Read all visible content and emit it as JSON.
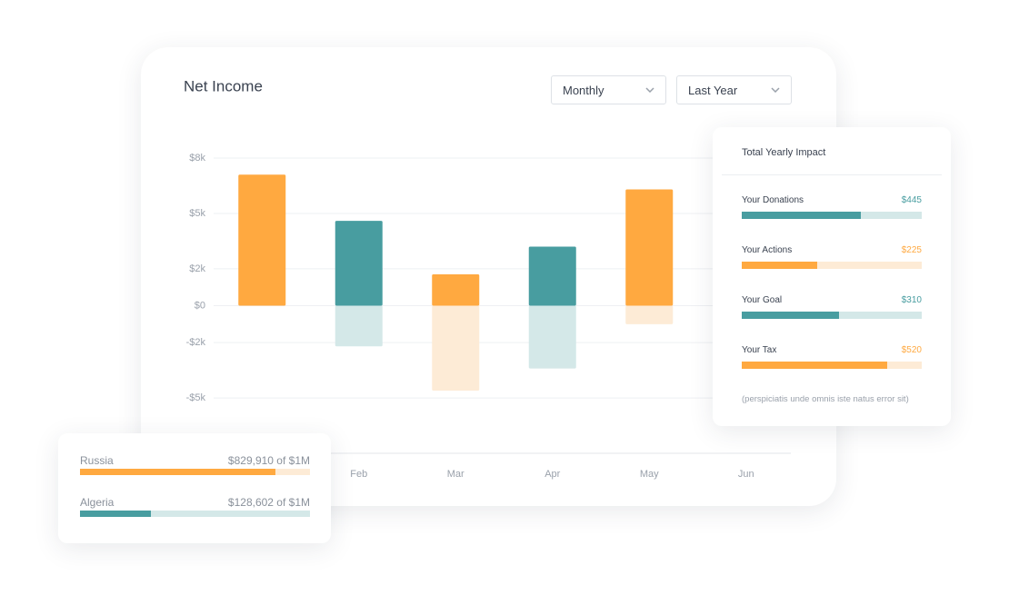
{
  "chart_data": {
    "type": "bar",
    "title": "Net Income",
    "categories": [
      null,
      "Feb",
      "Mar",
      "Apr",
      "May",
      "Jun"
    ],
    "series": [
      {
        "colors": [
          "#ffa940",
          "#489da0",
          "#ffa940",
          "#489da0",
          "#ffa940",
          "#489da0"
        ],
        "values": [
          7.1,
          4.6,
          1.7,
          3.2,
          6.3,
          null
        ]
      },
      {
        "colors": [
          "#fdebd6",
          "#d4e8e8",
          "#fdebd6",
          "#d4e8e8",
          "#fdebd6",
          "#d4e8e8"
        ],
        "values": [
          null,
          -2.2,
          -4.6,
          -3.4,
          -1.0,
          null
        ]
      }
    ],
    "ylim": [
      -8,
      8
    ],
    "yticks": [
      {
        "value": 8,
        "label": "$8k"
      },
      {
        "value": 5,
        "label": "$5k"
      },
      {
        "value": 2,
        "label": "$2k"
      },
      {
        "value": 0,
        "label": "$0"
      },
      {
        "value": -2,
        "label": "-$2k"
      },
      {
        "value": -5,
        "label": "-$5k"
      }
    ],
    "grid": true
  },
  "filters": [
    "Monthly",
    "Last Year"
  ],
  "impact": {
    "title": "Total Yearly Impact",
    "items": [
      {
        "label": "Your Donations",
        "amount": "$445",
        "progress": 66,
        "color": "#489da0",
        "track": "#d4e8e8"
      },
      {
        "label": "Your Actions",
        "amount": "$225",
        "progress": 42,
        "color": "#ffa940",
        "track": "#fdebd6"
      },
      {
        "label": "Your Goal",
        "amount": "$310",
        "progress": 54,
        "color": "#489da0",
        "track": "#d4e8e8"
      },
      {
        "label": "Your Tax",
        "amount": "$520",
        "progress": 81,
        "color": "#ffa940",
        "track": "#fdebd6"
      }
    ],
    "note": "(perspiciatis unde omnis iste natus error sit)"
  },
  "regions": [
    {
      "name": "Russia",
      "amount": "$829,910 of $1M",
      "progress": 85,
      "color": "#ffa940",
      "track": "#fdebd6"
    },
    {
      "name": "Algeria",
      "amount": "$128,602 of $1M",
      "progress": 31,
      "color": "#489da0",
      "track": "#d4e8e8"
    }
  ]
}
